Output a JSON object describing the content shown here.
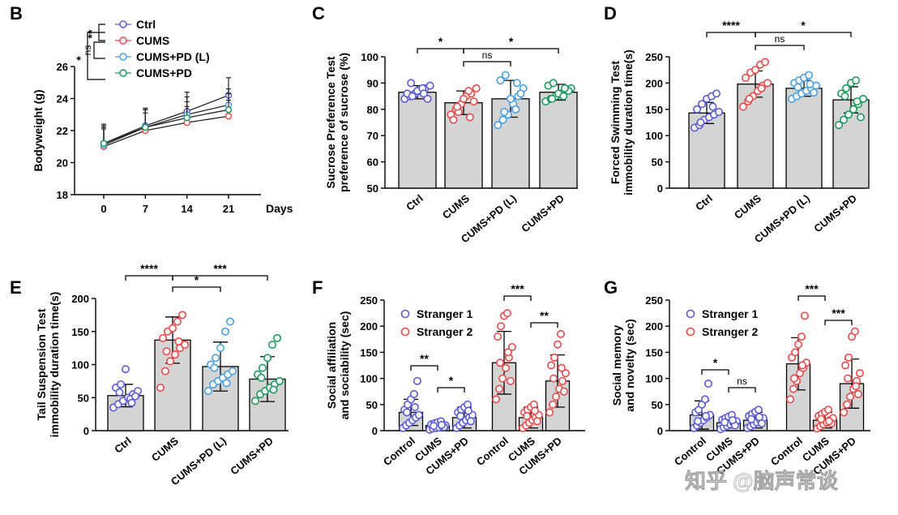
{
  "watermark": "知乎 @脑声常谈",
  "chart_data": [
    {
      "panel": "B",
      "type": "line",
      "x": [
        0,
        7,
        14,
        21
      ],
      "xticks": [
        "0",
        "7",
        "14",
        "21"
      ],
      "xlabel": "Days",
      "ylabel": "Bodyweight (g)",
      "ylim": [
        18,
        26
      ],
      "yticks": [
        "18",
        "20",
        "22",
        "24",
        "26"
      ],
      "series": [
        {
          "name": "Ctrl",
          "color": "#5b5bd6",
          "values": [
            21.2,
            22.3,
            23.2,
            24.2
          ],
          "err": [
            1.2,
            1.1,
            1.2,
            1.1
          ]
        },
        {
          "name": "CUMS",
          "color": "#e44b4b",
          "values": [
            21.0,
            22.0,
            22.5,
            22.9
          ],
          "err": [
            1.1,
            1.1,
            1.0,
            1.0
          ]
        },
        {
          "name": "CUMS+PD (L)",
          "color": "#4a9fe0",
          "values": [
            21.1,
            22.2,
            23.0,
            23.6
          ],
          "err": [
            1.1,
            1.1,
            1.1,
            1.0
          ]
        },
        {
          "name": "CUMS+PD",
          "color": "#1f9a5e",
          "values": [
            21.2,
            22.2,
            22.8,
            23.3
          ],
          "err": [
            1.1,
            1.1,
            1.0,
            1.0
          ]
        }
      ],
      "sig": [
        "**",
        "ns",
        "*"
      ]
    },
    {
      "panel": "C",
      "type": "bar",
      "ylabel": [
        "Sucrose Preference Test",
        "preference of sucrose (%)"
      ],
      "ylim": [
        50,
        100
      ],
      "yticks": [
        "50",
        "60",
        "70",
        "80",
        "90",
        "100"
      ],
      "categories": [
        "Ctrl",
        "CUMS",
        "CUMS+PD (L)",
        "CUMS+PD"
      ],
      "colors": [
        "#5b5bd6",
        "#e44b4b",
        "#4a9fe0",
        "#1f9a5e"
      ],
      "values": [
        86.5,
        82.5,
        84,
        86.5
      ],
      "err": [
        2.5,
        4.5,
        7,
        3
      ],
      "points": [
        [
          84,
          85,
          86,
          87,
          88,
          89,
          86,
          85,
          87,
          88,
          84,
          90,
          86
        ],
        [
          78,
          80,
          82,
          85,
          86,
          88,
          76,
          79,
          84,
          87,
          83,
          81,
          77
        ],
        [
          74,
          76,
          78,
          82,
          85,
          88,
          91,
          93,
          84,
          80,
          86,
          79,
          90
        ],
        [
          83,
          84,
          85,
          86,
          87,
          88,
          89,
          90,
          86,
          85,
          87,
          84,
          88
        ]
      ],
      "brackets": [
        [
          "0",
          "1",
          "*"
        ],
        [
          "1",
          "2",
          "ns"
        ],
        [
          "1",
          "3",
          "*"
        ]
      ]
    },
    {
      "panel": "D",
      "type": "bar",
      "ylabel": [
        "Forced Swimming Test",
        "immobility duration time(s)"
      ],
      "ylim": [
        0,
        250
      ],
      "yticks": [
        "0",
        "50",
        "100",
        "150",
        "200",
        "250"
      ],
      "categories": [
        "Ctrl",
        "CUMS",
        "CUMS+PD (L)",
        "CUMS+PD"
      ],
      "colors": [
        "#5b5bd6",
        "#e44b4b",
        "#4a9fe0",
        "#1f9a5e"
      ],
      "values": [
        143,
        198,
        190,
        168
      ],
      "err": [
        20,
        25,
        15,
        25
      ],
      "points": [
        [
          115,
          120,
          130,
          135,
          140,
          145,
          150,
          160,
          170,
          175,
          180,
          125,
          155
        ],
        [
          155,
          165,
          175,
          185,
          195,
          200,
          210,
          220,
          225,
          235,
          240,
          170,
          190
        ],
        [
          170,
          175,
          180,
          185,
          190,
          195,
          200,
          205,
          210,
          215,
          182,
          192,
          198
        ],
        [
          120,
          130,
          140,
          150,
          160,
          170,
          180,
          190,
          200,
          205,
          135,
          175,
          165
        ]
      ],
      "brackets": [
        [
          "0",
          "1",
          "****"
        ],
        [
          "1",
          "2",
          "ns"
        ],
        [
          "1",
          "3",
          "*"
        ]
      ]
    },
    {
      "panel": "E",
      "type": "bar",
      "ylabel": [
        "Tail Suspension Test",
        "immobility duration time(s)"
      ],
      "ylim": [
        0,
        200
      ],
      "yticks": [
        "0",
        "50",
        "100",
        "150",
        "200"
      ],
      "categories": [
        "Ctrl",
        "CUMS",
        "CUMS+PD (L)",
        "CUMS+PD"
      ],
      "colors": [
        "#5b5bd6",
        "#e44b4b",
        "#4a9fe0",
        "#1f9a5e"
      ],
      "values": [
        53,
        137,
        97,
        78
      ],
      "err": [
        17,
        35,
        37,
        34
      ],
      "points": [
        [
          35,
          40,
          45,
          50,
          55,
          60,
          65,
          70,
          93,
          48,
          52,
          58,
          42
        ],
        [
          65,
          90,
          105,
          115,
          125,
          130,
          140,
          150,
          155,
          165,
          175,
          120,
          135
        ],
        [
          60,
          70,
          75,
          80,
          85,
          90,
          100,
          110,
          125,
          150,
          165,
          95,
          72
        ],
        [
          45,
          55,
          60,
          65,
          70,
          75,
          85,
          95,
          110,
          130,
          140,
          80,
          62
        ]
      ],
      "brackets": [
        [
          "0",
          "1",
          "****"
        ],
        [
          "1",
          "2",
          "*"
        ],
        [
          "1",
          "3",
          "***"
        ]
      ]
    },
    {
      "panel": "F",
      "type": "bar",
      "ylabel": [
        "Social affiliation",
        "and sociability (sec)"
      ],
      "ylim": [
        0,
        250
      ],
      "yticks": [
        "0",
        "50",
        "100",
        "150",
        "200",
        "250"
      ],
      "legend": [
        "Stranger 1",
        "Stranger 2"
      ],
      "categories": [
        "Control",
        "CUMS",
        "CUMS+PD",
        "Control",
        "CUMS",
        "CUMS+PD"
      ],
      "colors": [
        "#5b5bd6",
        "#5b5bd6",
        "#5b5bd6",
        "#e44b4b",
        "#e44b4b",
        "#e44b4b"
      ],
      "values": [
        35,
        10,
        25,
        130,
        25,
        95
      ],
      "err": [
        25,
        8,
        20,
        60,
        20,
        50
      ],
      "points": [
        [
          5,
          10,
          15,
          20,
          25,
          30,
          40,
          50,
          60,
          70,
          95,
          35,
          45
        ],
        [
          2,
          4,
          5,
          6,
          8,
          10,
          12,
          14,
          16,
          18,
          7,
          9,
          11
        ],
        [
          5,
          10,
          15,
          20,
          25,
          30,
          35,
          40,
          45,
          50,
          18,
          28,
          38
        ],
        [
          60,
          80,
          100,
          120,
          140,
          160,
          180,
          200,
          220,
          225,
          95,
          130,
          150
        ],
        [
          5,
          10,
          15,
          20,
          25,
          30,
          35,
          40,
          45,
          50,
          18,
          28,
          38
        ],
        [
          35,
          50,
          65,
          80,
          95,
          110,
          125,
          140,
          165,
          185,
          75,
          100,
          120
        ]
      ],
      "brackets": [
        [
          "0",
          "1",
          "**"
        ],
        [
          "1",
          "2",
          "*"
        ],
        [
          "3",
          "4",
          "***"
        ],
        [
          "4",
          "5",
          "**"
        ]
      ]
    },
    {
      "panel": "G",
      "type": "bar",
      "ylabel": [
        "Social memory",
        "and novelty (sec)"
      ],
      "ylim": [
        0,
        250
      ],
      "yticks": [
        "0",
        "50",
        "100",
        "150",
        "200",
        "250"
      ],
      "legend": [
        "Stranger 1",
        "Stranger 2"
      ],
      "categories": [
        "Control",
        "CUMS",
        "CUMS+PD",
        "Control",
        "CUMS",
        "CUMS+PD"
      ],
      "colors": [
        "#5b5bd6",
        "#5b5bd6",
        "#5b5bd6",
        "#e44b4b",
        "#e44b4b",
        "#e44b4b"
      ],
      "values": [
        30,
        15,
        20,
        128,
        20,
        90
      ],
      "err": [
        27,
        10,
        15,
        50,
        15,
        47
      ],
      "points": [
        [
          5,
          10,
          15,
          20,
          25,
          30,
          35,
          40,
          50,
          60,
          90,
          18,
          28
        ],
        [
          3,
          6,
          9,
          12,
          15,
          18,
          21,
          24,
          27,
          30,
          10,
          16,
          20
        ],
        [
          5,
          8,
          12,
          16,
          20,
          24,
          28,
          32,
          36,
          40,
          14,
          22,
          26
        ],
        [
          60,
          80,
          95,
          110,
          120,
          130,
          140,
          150,
          165,
          180,
          220,
          100,
          125
        ],
        [
          4,
          8,
          12,
          16,
          20,
          24,
          28,
          32,
          36,
          40,
          14,
          22,
          18
        ],
        [
          35,
          50,
          65,
          80,
          95,
          110,
          125,
          140,
          180,
          190,
          70,
          100,
          85
        ]
      ],
      "brackets": [
        [
          "0",
          "1",
          "*"
        ],
        [
          "1",
          "2",
          "ns"
        ],
        [
          "3",
          "4",
          "***"
        ],
        [
          "4",
          "5",
          "***"
        ]
      ]
    }
  ]
}
